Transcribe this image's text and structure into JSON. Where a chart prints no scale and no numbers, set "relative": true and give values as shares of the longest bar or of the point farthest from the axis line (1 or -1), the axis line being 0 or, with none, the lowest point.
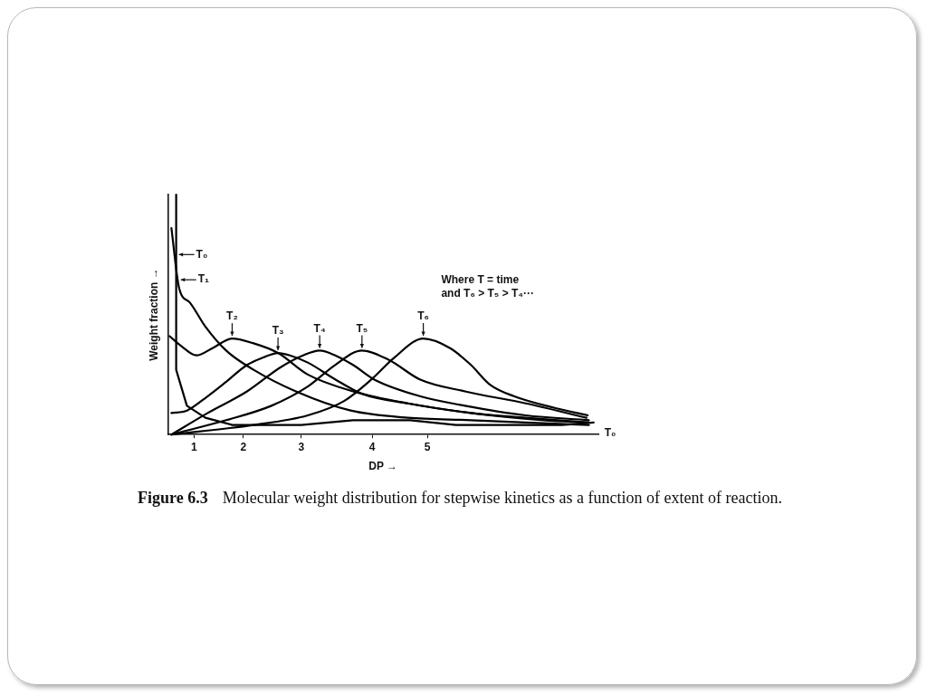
{
  "chart_data": {
    "type": "line",
    "title": "Figure 6.3 Molecular weight distribution for stepwise kinetics as a function of extent of reaction.",
    "xlabel": "DP →",
    "ylabel": "Weight fraction →",
    "relative": true,
    "marker": "none",
    "line_style": "solid",
    "xlim": [
      0.65,
      7.88
    ],
    "xticks": [
      {
        "value": 1.09,
        "label": "1"
      },
      {
        "value": 1.92,
        "label": "2"
      },
      {
        "value": 2.89,
        "label": "3"
      },
      {
        "value": 4.08,
        "label": "4"
      },
      {
        "value": 5.01,
        "label": "5"
      }
    ],
    "annotations": [
      "Where T = time\nand T₆ > T₅ > T₄···",
      {
        "text": "T₀",
        "x": 7.8,
        "y": 0.05
      }
    ],
    "series": [
      {
        "name": "T₀",
        "color": "#000000",
        "x": [
          0.79,
          0.79,
          0.97,
          1.28,
          1.73,
          2.24,
          2.89,
          3.76,
          4.72,
          5.49,
          6.5,
          7.27,
          7.8
        ],
        "values": [
          1.0,
          0.27,
          0.12,
          0.07,
          0.04,
          0.04,
          0.04,
          0.06,
          0.06,
          0.04,
          0.04,
          0.04,
          0.05
        ]
      },
      {
        "name": "T₁",
        "color": "#000000",
        "x": [
          0.71,
          0.84,
          1.02,
          1.28,
          1.63,
          2.09,
          2.8,
          3.72,
          4.68,
          5.74,
          6.66,
          7.72
        ],
        "values": [
          0.86,
          0.61,
          0.55,
          0.45,
          0.35,
          0.27,
          0.18,
          0.1,
          0.07,
          0.06,
          0.05,
          0.04
        ]
      },
      {
        "name": "T₂",
        "color": "#000000",
        "x": [
          0.68,
          0.87,
          1.13,
          1.4,
          1.73,
          2.09,
          2.5,
          3.0,
          3.76,
          4.68,
          5.74,
          6.96,
          7.72
        ],
        "values": [
          0.41,
          0.37,
          0.33,
          0.36,
          0.4,
          0.38,
          0.34,
          0.25,
          0.18,
          0.13,
          0.09,
          0.06,
          0.05
        ]
      },
      {
        "name": "T₃",
        "color": "#000000",
        "x": [
          0.71,
          0.97,
          1.32,
          1.63,
          1.98,
          2.24,
          2.5,
          2.7,
          3.0,
          3.46,
          3.91,
          4.68,
          5.74,
          6.66,
          7.72
        ],
        "values": [
          0.09,
          0.1,
          0.16,
          0.22,
          0.29,
          0.32,
          0.34,
          0.33,
          0.3,
          0.23,
          0.17,
          0.13,
          0.09,
          0.07,
          0.05
        ]
      },
      {
        "name": "T₄",
        "color": "#000000",
        "x": [
          0.71,
          1.32,
          1.98,
          2.54,
          2.92,
          3.2,
          3.46,
          3.76,
          4.11,
          4.88,
          5.64,
          6.66,
          7.72
        ],
        "values": [
          0,
          0.09,
          0.18,
          0.28,
          0.33,
          0.35,
          0.33,
          0.29,
          0.23,
          0.16,
          0.12,
          0.08,
          0.06
        ]
      },
      {
        "name": "T₅",
        "color": "#000000",
        "x": [
          0.71,
          1.63,
          2.39,
          3.0,
          3.46,
          3.91,
          4.37,
          4.88,
          5.64,
          6.66,
          7.68
        ],
        "values": [
          0,
          0.06,
          0.12,
          0.2,
          0.29,
          0.35,
          0.31,
          0.23,
          0.18,
          0.13,
          0.07
        ]
      },
      {
        "name": "T₆",
        "color": "#000000",
        "x": [
          0.71,
          2.09,
          3.0,
          3.61,
          4.07,
          4.45,
          4.94,
          5.39,
          5.74,
          6.05,
          6.46,
          7.16,
          7.7
        ],
        "values": [
          0,
          0.04,
          0.08,
          0.14,
          0.23,
          0.32,
          0.4,
          0.36,
          0.29,
          0.21,
          0.16,
          0.11,
          0.08
        ]
      }
    ]
  }
}
